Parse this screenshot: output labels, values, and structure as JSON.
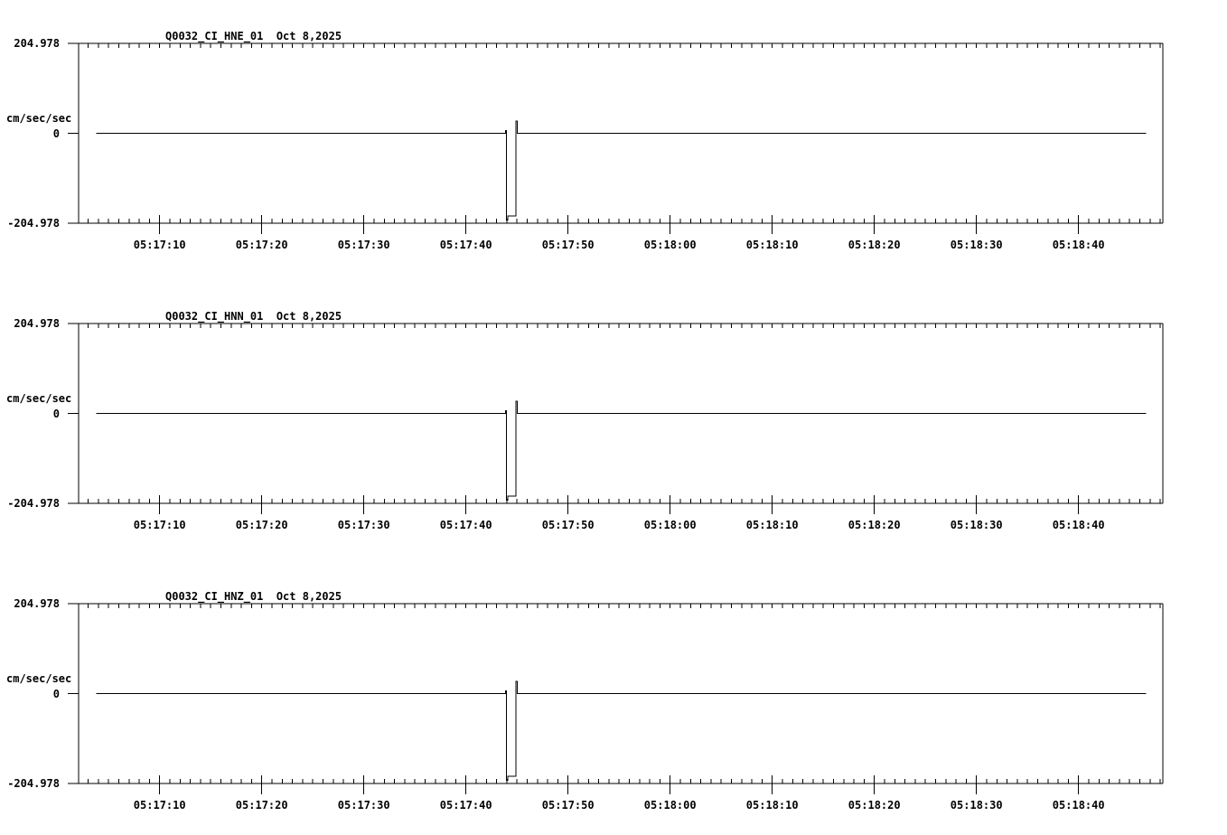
{
  "page": {
    "background_color": "#ffffff",
    "ink_color": "#000000",
    "description": "Three stacked strong-motion acceleration waveform plots for station Q0032 (network CI), channels HNE, HNN, HNZ"
  },
  "chart_data": [
    {
      "type": "line",
      "title": "Q0032_CI_HNE_01  Oct 8,2025",
      "station_channel": "Q0032_CI_HNE_01",
      "date": "Oct 8,2025",
      "ylabel": "cm/sec/sec",
      "ylim": [
        -204.978,
        204.978
      ],
      "grid": false,
      "y_ticks": [
        {
          "label": "204.978",
          "value": 204.978
        },
        {
          "label": "0",
          "value": 0
        },
        {
          "label": "-204.978",
          "value": -204.978
        }
      ],
      "x_tick_labels": [
        "05:17:10",
        "05:17:20",
        "05:17:30",
        "05:17:40",
        "05:17:50",
        "05:18:00",
        "05:18:10",
        "05:18:20",
        "05:18:30",
        "05:18:40"
      ],
      "x_tick_seconds": [
        10,
        20,
        30,
        40,
        50,
        60,
        70,
        80,
        90,
        100
      ],
      "x_window": {
        "start": "05:17:02",
        "end": "05:18:48",
        "minor_tick_sec": 1,
        "major_tick_sec": 10,
        "seconds_reference": "seconds after 05:17:00"
      },
      "trace": {
        "color": "#000000",
        "points_t_amp": [
          [
            3.8,
            0
          ],
          [
            43.87,
            0
          ],
          [
            43.87,
            6
          ],
          [
            43.96,
            6
          ],
          [
            43.96,
            -198
          ],
          [
            44.09,
            -198
          ],
          [
            44.09,
            -188
          ],
          [
            44.89,
            -188
          ],
          [
            44.89,
            28
          ],
          [
            45.02,
            28
          ],
          [
            45.02,
            0
          ],
          [
            106.6,
            0
          ]
        ],
        "description": "flat at 0 with ~0.9 s rectangular pulse to about -198 cm/sec/sec near 05:17:44, brief +28 overshoot, then flat at 0"
      }
    },
    {
      "type": "line",
      "title": "Q0032_CI_HNN_01  Oct 8,2025",
      "station_channel": "Q0032_CI_HNN_01",
      "date": "Oct 8,2025",
      "ylabel": "cm/sec/sec",
      "ylim": [
        -204.978,
        204.978
      ],
      "grid": false,
      "y_ticks": [
        {
          "label": "204.978",
          "value": 204.978
        },
        {
          "label": "0",
          "value": 0
        },
        {
          "label": "-204.978",
          "value": -204.978
        }
      ],
      "x_tick_labels": [
        "05:17:10",
        "05:17:20",
        "05:17:30",
        "05:17:40",
        "05:17:50",
        "05:18:00",
        "05:18:10",
        "05:18:20",
        "05:18:30",
        "05:18:40"
      ],
      "x_tick_seconds": [
        10,
        20,
        30,
        40,
        50,
        60,
        70,
        80,
        90,
        100
      ],
      "x_window": {
        "start": "05:17:02",
        "end": "05:18:48",
        "minor_tick_sec": 1,
        "major_tick_sec": 10,
        "seconds_reference": "seconds after 05:17:00"
      },
      "trace": {
        "color": "#000000",
        "points_t_amp": [
          [
            3.8,
            0
          ],
          [
            43.87,
            0
          ],
          [
            43.87,
            6
          ],
          [
            43.96,
            6
          ],
          [
            43.96,
            -198
          ],
          [
            44.09,
            -198
          ],
          [
            44.09,
            -188
          ],
          [
            44.89,
            -188
          ],
          [
            44.89,
            28
          ],
          [
            45.02,
            28
          ],
          [
            45.02,
            0
          ],
          [
            106.6,
            0
          ]
        ],
        "description": "flat at 0 with ~0.9 s rectangular pulse to about -198 cm/sec/sec near 05:17:44, brief +28 overshoot, then flat at 0"
      }
    },
    {
      "type": "line",
      "title": "Q0032_CI_HNZ_01  Oct 8,2025",
      "station_channel": "Q0032_CI_HNZ_01",
      "date": "Oct 8,2025",
      "ylabel": "cm/sec/sec",
      "ylim": [
        -204.978,
        204.978
      ],
      "grid": false,
      "y_ticks": [
        {
          "label": "204.978",
          "value": 204.978
        },
        {
          "label": "0",
          "value": 0
        },
        {
          "label": "-204.978",
          "value": -204.978
        }
      ],
      "x_tick_labels": [
        "05:17:10",
        "05:17:20",
        "05:17:30",
        "05:17:40",
        "05:17:50",
        "05:18:00",
        "05:18:10",
        "05:18:20",
        "05:18:30",
        "05:18:40"
      ],
      "x_tick_seconds": [
        10,
        20,
        30,
        40,
        50,
        60,
        70,
        80,
        90,
        100
      ],
      "x_window": {
        "start": "05:17:02",
        "end": "05:18:48",
        "minor_tick_sec": 1,
        "major_tick_sec": 10,
        "seconds_reference": "seconds after 05:17:00"
      },
      "trace": {
        "color": "#000000",
        "points_t_amp": [
          [
            3.8,
            0
          ],
          [
            43.87,
            0
          ],
          [
            43.87,
            6
          ],
          [
            43.96,
            6
          ],
          [
            43.96,
            -198
          ],
          [
            44.09,
            -198
          ],
          [
            44.09,
            -188
          ],
          [
            44.89,
            -188
          ],
          [
            44.89,
            28
          ],
          [
            45.02,
            28
          ],
          [
            45.02,
            0
          ],
          [
            106.6,
            0
          ]
        ],
        "description": "flat at 0 with ~0.9 s rectangular pulse to about -198 cm/sec/sec near 05:17:44, brief +28 overshoot, then flat at 0"
      }
    }
  ]
}
